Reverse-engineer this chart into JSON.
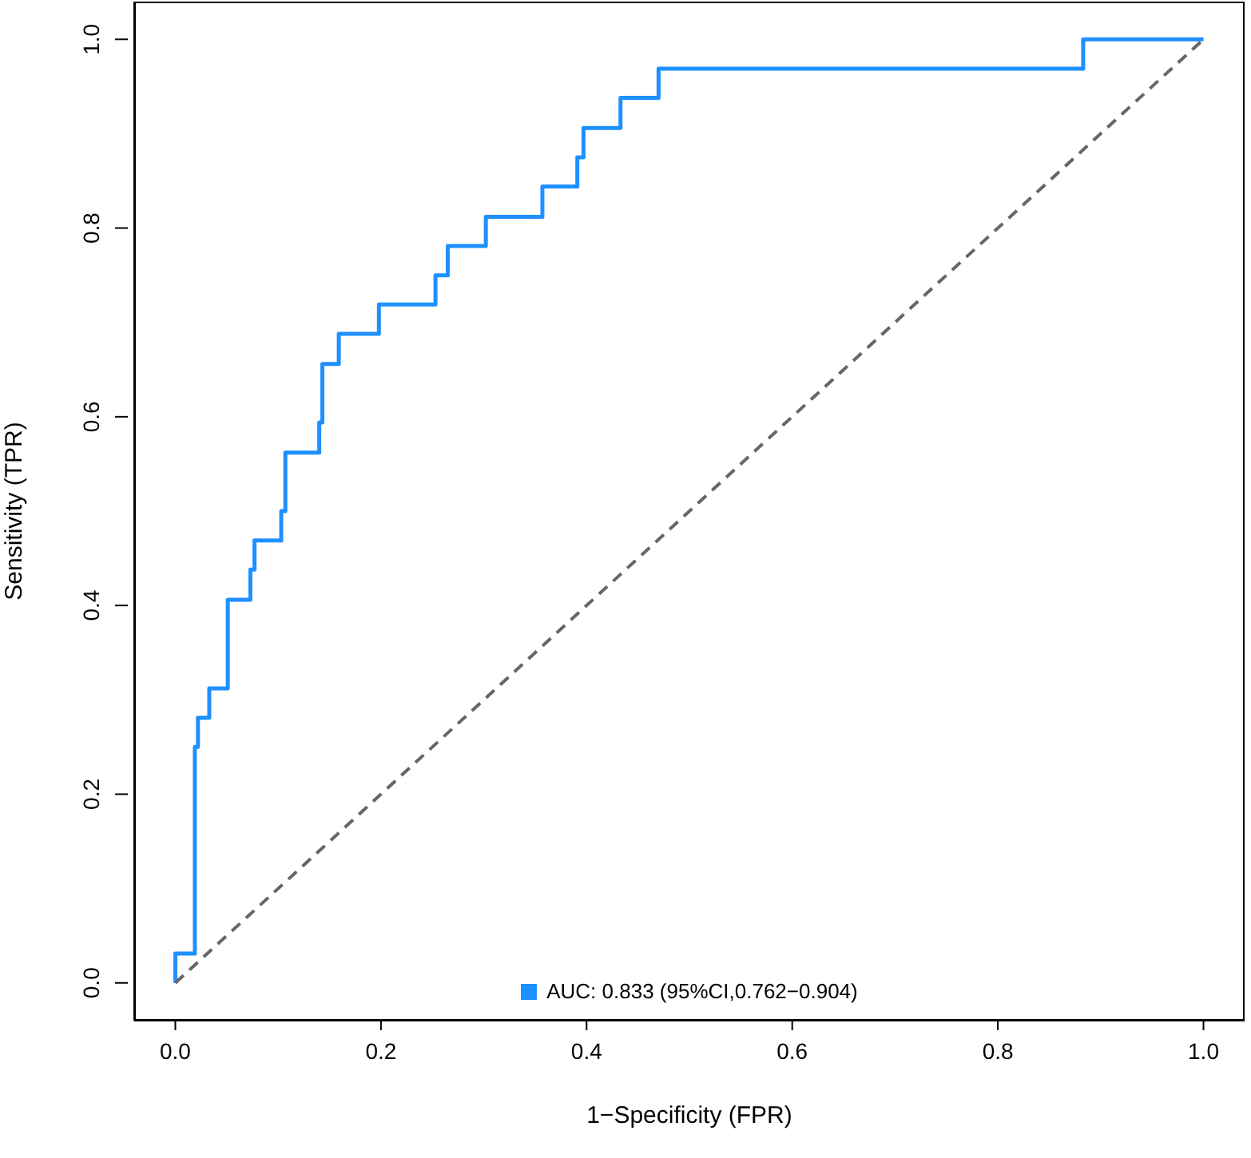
{
  "chart_data": {
    "type": "step",
    "xlabel": "1−Specificity (FPR)",
    "ylabel": "Sensitivity (TPR)",
    "xlim": [
      -0.04,
      1.04
    ],
    "ylim": [
      -0.04,
      1.04
    ],
    "xticks": [
      {
        "value": 0,
        "label": "0.0"
      },
      {
        "value": 0.2,
        "label": "0.2"
      },
      {
        "value": 0.4,
        "label": "0.4"
      },
      {
        "value": 0.6,
        "label": "0.6"
      },
      {
        "value": 0.8,
        "label": "0.8"
      },
      {
        "value": 1,
        "label": "1.0"
      }
    ],
    "yticks": [
      {
        "value": 0,
        "label": "0.0"
      },
      {
        "value": 0.2,
        "label": "0.2"
      },
      {
        "value": 0.4,
        "label": "0.4"
      },
      {
        "value": 0.6,
        "label": "0.6"
      },
      {
        "value": 0.8,
        "label": "0.8"
      },
      {
        "value": 1,
        "label": "1.0"
      }
    ],
    "grid": false,
    "legend": "bottom",
    "marker": "none",
    "series": [
      {
        "name": "AUC: 0.833 (95%CI,0.762−0.904)",
        "color": "#1e90ff",
        "type": "step",
        "line_style": "solid",
        "x": [
          0,
          0,
          0.019,
          0.022,
          0.033,
          0.051,
          0.073,
          0.077,
          0.103,
          0.107,
          0.14,
          0.143,
          0.159,
          0.198,
          0.253,
          0.265,
          0.302,
          0.357,
          0.391,
          0.397,
          0.433,
          0.47,
          0.883,
          1.0
        ],
        "values": [
          0,
          0.031,
          0.25,
          0.281,
          0.312,
          0.406,
          0.438,
          0.469,
          0.5,
          0.562,
          0.594,
          0.656,
          0.688,
          0.719,
          0.75,
          0.781,
          0.812,
          0.844,
          0.875,
          0.906,
          0.938,
          0.969,
          1.0,
          1.0
        ]
      },
      {
        "color": "#666666",
        "type": "line",
        "line_style": "dashed",
        "x": [
          0,
          1
        ],
        "values": [
          0,
          1
        ]
      }
    ]
  }
}
